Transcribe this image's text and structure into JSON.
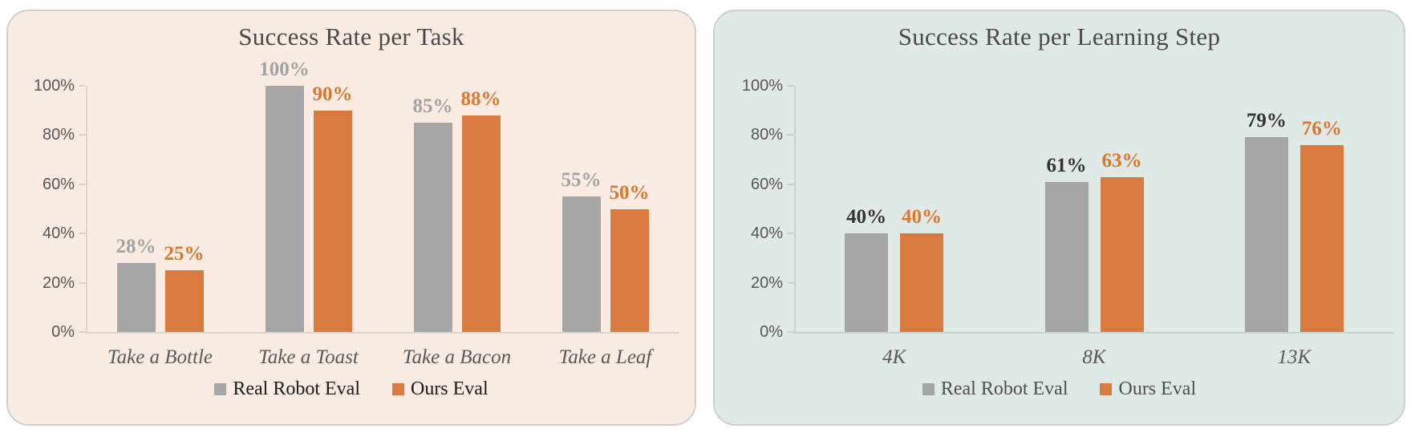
{
  "chart_data": [
    {
      "type": "bar",
      "title": "Success Rate per Task",
      "categories": [
        "Take a Bottle",
        "Take a Toast",
        "Take a Bacon",
        "Take a Leaf"
      ],
      "series": [
        {
          "name": "Real Robot Eval",
          "values": [
            28,
            100,
            85,
            55
          ],
          "color": "#a6a6a6",
          "label_color": "#a3a3a3"
        },
        {
          "name": "Ours Eval",
          "values": [
            25,
            90,
            88,
            50
          ],
          "color": "#d97a3e",
          "label_color": "#dd762e"
        }
      ],
      "value_suffix": "%",
      "ylim": [
        0,
        100
      ],
      "y_ticks": [
        0,
        20,
        40,
        60,
        80,
        100
      ],
      "y_tick_labels": [
        "0%",
        "20%",
        "40%",
        "60%",
        "80%",
        "100%"
      ],
      "grid": false,
      "legend_position": "bottom",
      "panel_bg": "#faece2",
      "axis_color": "#ddd5cd",
      "legend_text_color": "#1a1a1a"
    },
    {
      "type": "bar",
      "title": "Success Rate per Learning Step",
      "categories": [
        "4K",
        "8K",
        "13K"
      ],
      "series": [
        {
          "name": "Real Robot Eval",
          "values": [
            40,
            61,
            79
          ],
          "color": "#a6a6a6",
          "label_color": "#333333"
        },
        {
          "name": "Ours Eval",
          "values": [
            40,
            63,
            76
          ],
          "color": "#d97a3e",
          "label_color": "#dd762e"
        }
      ],
      "value_suffix": "%",
      "ylim": [
        0,
        100
      ],
      "y_ticks": [
        0,
        20,
        40,
        60,
        80,
        100
      ],
      "y_tick_labels": [
        "0%",
        "20%",
        "40%",
        "60%",
        "80%",
        "100%"
      ],
      "grid": false,
      "legend_position": "bottom",
      "panel_bg": "#dfe9e6",
      "axis_color": "#c8d3cf",
      "legend_text_color": "#4f4f4f"
    }
  ]
}
